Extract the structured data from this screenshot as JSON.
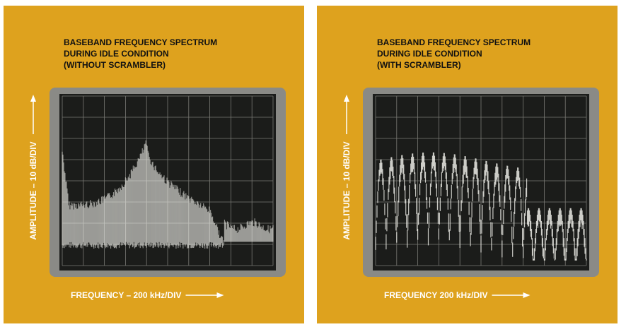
{
  "panels": [
    {
      "title_lines": [
        "BASEBAND FREQUENCY SPECTRUM",
        "DURING IDLE CONDITION",
        "(WITHOUT SCRAMBLER)"
      ],
      "y_label": "AMPLITUDE – 10 dB/DIV",
      "x_label": "FREQUENCY – 200 kHz/DIV"
    },
    {
      "title_lines": [
        "BASEBAND FREQUENCY SPECTRUM",
        "DURING IDLE CONDITION",
        "(WITH SCRAMBLER)"
      ],
      "y_label": "AMPLITUDE – 10 dB/DIV",
      "x_label": "FREQUENCY    200 kHz/DIV"
    }
  ]
}
